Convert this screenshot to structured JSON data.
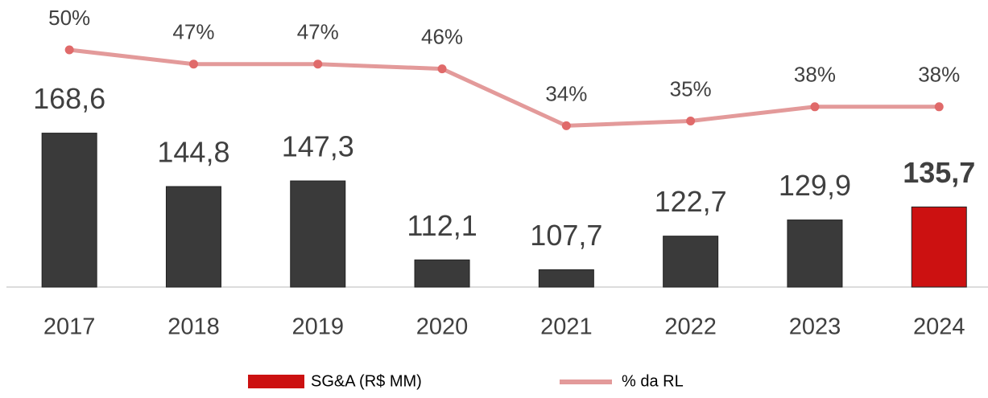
{
  "chart_data": {
    "type": "bar",
    "categories": [
      "2017",
      "2018",
      "2019",
      "2020",
      "2021",
      "2022",
      "2023",
      "2024"
    ],
    "ylim": [
      100,
      200
    ],
    "y2lim": [
      0,
      60
    ],
    "series": [
      {
        "name": "SG&A (R$ MM)",
        "type": "bar",
        "color": "#cc1111",
        "bar_colors": [
          "#3a3a3a",
          "#3a3a3a",
          "#3a3a3a",
          "#3a3a3a",
          "#3a3a3a",
          "#3a3a3a",
          "#3a3a3a",
          "#cc1111"
        ],
        "values": [
          168.6,
          144.8,
          147.3,
          112.1,
          107.7,
          122.7,
          129.9,
          135.7
        ],
        "value_labels": [
          "168,6",
          "144,8",
          "147,3",
          "112,1",
          "107,7",
          "122,7",
          "129,9",
          "135,7"
        ]
      },
      {
        "name": "% da RL",
        "type": "line",
        "axis": "y2",
        "color": "#e39a9a",
        "values": [
          50,
          47,
          47,
          46,
          34,
          35,
          38,
          38
        ],
        "value_labels": [
          "50%",
          "47%",
          "47%",
          "46%",
          "34%",
          "35%",
          "38%",
          "38%"
        ]
      }
    ]
  }
}
